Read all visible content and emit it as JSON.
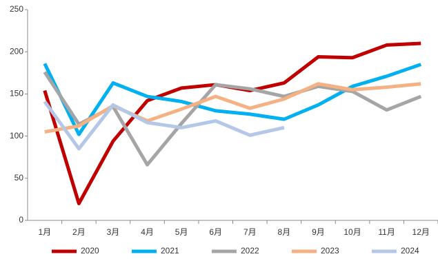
{
  "chart_data": {
    "type": "line",
    "categories": [
      "1月",
      "2月",
      "3月",
      "4月",
      "5月",
      "6月",
      "7月",
      "8月",
      "9月",
      "10月",
      "11月",
      "12月"
    ],
    "series": [
      {
        "name": "2020",
        "color": "#c00000",
        "values": [
          154,
          20,
          94,
          142,
          157,
          161,
          154,
          163,
          194,
          193,
          208,
          210
        ]
      },
      {
        "name": "2021",
        "color": "#00b0f0",
        "values": [
          186,
          102,
          163,
          147,
          141,
          130,
          126,
          120,
          137,
          159,
          171,
          185
        ]
      },
      {
        "name": "2022",
        "color": "#a5a5a5",
        "values": [
          176,
          114,
          135,
          66,
          115,
          161,
          156,
          147,
          159,
          153,
          131,
          147
        ]
      },
      {
        "name": "2023",
        "color": "#f4b183",
        "values": [
          105,
          112,
          136,
          118,
          132,
          147,
          133,
          144,
          162,
          155,
          158,
          162
        ]
      },
      {
        "name": "2024",
        "color": "#b4c7e7",
        "values": [
          141,
          85,
          137,
          116,
          110,
          118,
          101,
          110,
          null,
          null,
          null,
          null
        ]
      }
    ],
    "ylim": [
      0,
      250
    ],
    "yticks": [
      0,
      50,
      100,
      150,
      200,
      250
    ],
    "legend": "bottom"
  }
}
